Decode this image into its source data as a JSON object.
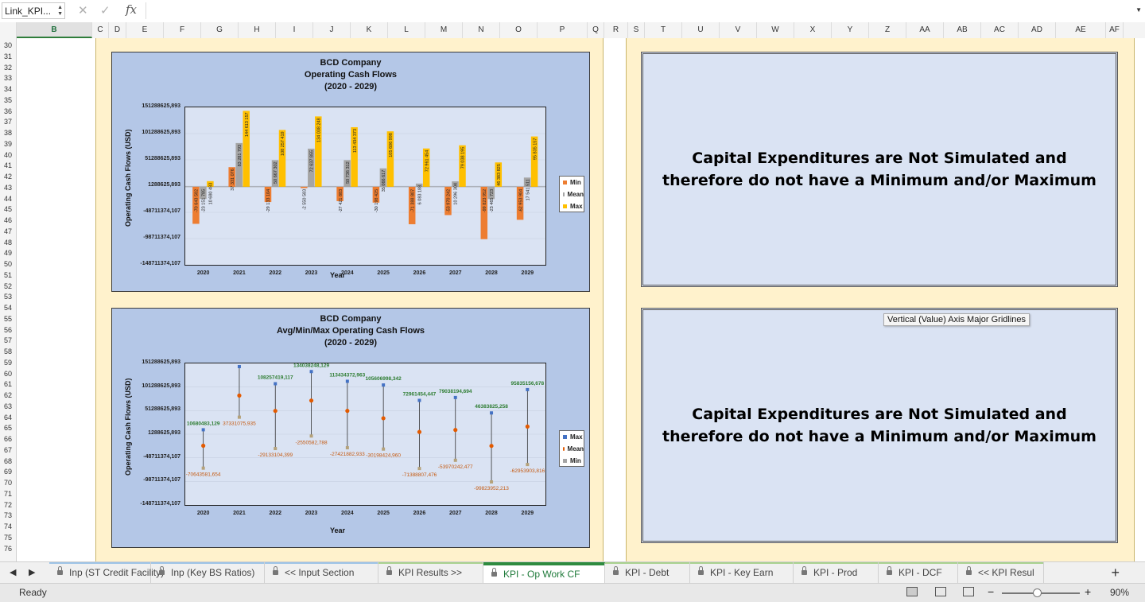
{
  "formula_bar": {
    "name_box": "Link_KPI...",
    "fx_label": "fx",
    "cancel_icon": "✕",
    "enter_icon": "✓",
    "formula": ""
  },
  "columns": [
    "B",
    "C",
    "D",
    "E",
    "F",
    "G",
    "H",
    "I",
    "J",
    "K",
    "L",
    "M",
    "N",
    "O",
    "P",
    "Q",
    "R",
    "S",
    "T",
    "U",
    "V",
    "W",
    "X",
    "Y",
    "Z",
    "AA",
    "AB",
    "AC",
    "AD",
    "AE",
    "AF"
  ],
  "selected_column": "B",
  "rows": [
    "30",
    "31",
    "32",
    "33",
    "34",
    "35",
    "36",
    "37",
    "38",
    "39",
    "40",
    "41",
    "42",
    "43",
    "44",
    "45",
    "46",
    "47",
    "48",
    "49",
    "50",
    "51",
    "52",
    "53",
    "54",
    "55",
    "56",
    "57",
    "58",
    "59",
    "60",
    "61",
    "62",
    "63",
    "64",
    "65",
    "66",
    "67",
    "68",
    "69",
    "70",
    "71",
    "72",
    "73",
    "74",
    "75",
    "76"
  ],
  "chart1": {
    "title": [
      "BCD Company",
      "Operating Cash Flows",
      "(2020 - 2029)"
    ],
    "ylabel": "Operating Cash Flows (USD)",
    "xlabel": "Year",
    "legend": [
      "Min",
      "Mean",
      "Max"
    ]
  },
  "chart2": {
    "title": [
      "BCD Company",
      "Avg/Min/Max Operating Cash Flows",
      "(2020 - 2029)"
    ],
    "ylabel": "Operating Cash Flows (USD)",
    "xlabel": "Year",
    "legend": [
      "Max",
      "Mean",
      "Min"
    ]
  },
  "chart_data": [
    {
      "type": "bar",
      "title": "BCD Company Operating Cash Flows (2020 - 2029)",
      "xlabel": "Year",
      "ylabel": "Operating Cash Flows (USD)",
      "categories": [
        "2020",
        "2021",
        "2022",
        "2023",
        "2024",
        "2025",
        "2026",
        "2027",
        "2028",
        "2029"
      ],
      "yticks": [
        "151288625,893",
        "101288625,893",
        "51288625,893",
        "1288625,893",
        "-48711374,107",
        "-98711374,107",
        "-148711374,107"
      ],
      "ylim": [
        -148711374.107,
        151288625.893
      ],
      "legend_position": "right",
      "series": [
        {
          "name": "Min",
          "color": "#ed7d31",
          "values": [
            -70643582,
            37331076,
            -29133104,
            -2550583,
            -27421883,
            -30198425,
            -71388807,
            -53970242,
            -99823952,
            -62953904
          ],
          "labels": [
            "-70 643 582",
            "37 331 076",
            "-29 133 104",
            "-2 550 583",
            "-27 421 883",
            "-30 198 425",
            "-71 388 807",
            "-53 970 242",
            "-99 823 952",
            "-62 953 904"
          ]
        },
        {
          "name": "Mean",
          "color": "#a5a5a5",
          "values": [
            -23151785,
            83281793,
            50667302,
            72637855,
            50736312,
            35066617,
            6083188,
            10296304,
            -23465723,
            17541511
          ],
          "labels": [
            "-23 151 785",
            "83 281 793",
            "50 667 302",
            "72 637 855",
            "50 736 312",
            "35 066 617",
            "6 083 188",
            "10 296 304",
            "-23 465 723",
            "17 541 511"
          ]
        },
        {
          "name": "Max",
          "color": "#ffc000",
          "values": [
            10680483,
            144613157,
            108257419,
            134038248,
            113434373,
            105606998,
            72961454,
            79038195,
            46383825,
            95835157
          ],
          "labels": [
            "10 680 483",
            "144 613 157",
            "108 257 419",
            "134 038 248",
            "113 434 373",
            "105 606 998",
            "72 961 454",
            "79 038 195",
            "46 383 825",
            "95 835 157"
          ]
        }
      ]
    },
    {
      "type": "scatter",
      "title": "BCD Company Avg/Min/Max Operating Cash Flows (2020 - 2029)",
      "xlabel": "Year",
      "ylabel": "Operating Cash Flows (USD)",
      "categories": [
        "2020",
        "2021",
        "2022",
        "2023",
        "2024",
        "2025",
        "2026",
        "2027",
        "2028",
        "2029"
      ],
      "yticks": [
        "151288625,893",
        "101288625,893",
        "51288625,893",
        "1288625,893",
        "-48711374,107",
        "-98711374,107",
        "-148711374,107"
      ],
      "ylim": [
        -148711374.107,
        151288625.893
      ],
      "legend_position": "right",
      "grid": true,
      "series": [
        {
          "name": "Max",
          "color": "#4472c4",
          "values": [
            10680483.129,
            144613157.259,
            108257419.117,
            134038248.129,
            113434372.963,
            105606998.342,
            72961454.447,
            79038194.694,
            46383825.258,
            95835156.678
          ],
          "labels": [
            "10680483,129",
            "144613157,259",
            "108257419,117",
            "134038248,129",
            "113434372,963",
            "105606998,342",
            "72961454,447",
            "79038194,694",
            "46383825,258",
            "95835156,678"
          ]
        },
        {
          "name": "Mean",
          "color": "#e35a00",
          "values": [
            -23151785,
            83281793,
            50667302,
            72637855,
            50736312,
            35066617,
            6083188,
            10296304,
            -23465723,
            17541511
          ]
        },
        {
          "name": "Min",
          "color": "#a5a5a5",
          "values": [
            -70643581.654,
            37331075.935,
            -29133104.399,
            -2550582.788,
            -27421882.933,
            -30198424.96,
            -71388807.476,
            -53970242.477,
            -99823952.213,
            -62953903.816
          ],
          "labels": [
            "-70643581,654",
            "37331075,935",
            "-29133104,399",
            "-2550582,788",
            "-27421882,933",
            "-30198424,960",
            "-71388807,476",
            "-53970242,477",
            "-99823952,213",
            "-62953903,816"
          ]
        }
      ]
    }
  ],
  "notes": {
    "top": "Capital Expenditures are Not Simulated and therefore do not have a Minimum and/or Maximum",
    "bottom": "Capital Expenditures are Not Simulated and therefore do not have a Minimum and/or Maximum"
  },
  "tooltip": "Vertical (Value) Axis Major Gridlines",
  "tabs": [
    {
      "label": "Inp (ST Credit Facility)",
      "stripe": "#9dc3e6",
      "active": false
    },
    {
      "label": "Inp (Key BS Ratios)",
      "stripe": "#9dc3e6",
      "active": false
    },
    {
      "label": "<< Input Section",
      "stripe": "#9dc3e6",
      "active": false
    },
    {
      "label": "KPI Results >>",
      "stripe": "#a9d18e",
      "active": false
    },
    {
      "label": "KPI - Op Work CF",
      "stripe": "#a9d18e",
      "active": true
    },
    {
      "label": "KPI - Debt",
      "stripe": "#a9d18e",
      "active": false
    },
    {
      "label": "KPI - Key Earn",
      "stripe": "#a9d18e",
      "active": false
    },
    {
      "label": "KPI - Prod",
      "stripe": "#a9d18e",
      "active": false
    },
    {
      "label": "KPI - DCF",
      "stripe": "#a9d18e",
      "active": false
    },
    {
      "label": "<< KPI Resul",
      "stripe": "#a9d18e",
      "active": false
    }
  ],
  "add_sheet_label": "+",
  "status": {
    "text": "Ready",
    "zoom": "90%",
    "zoom_minus": "−",
    "zoom_plus": "+",
    "zoom_level": 0.45
  }
}
